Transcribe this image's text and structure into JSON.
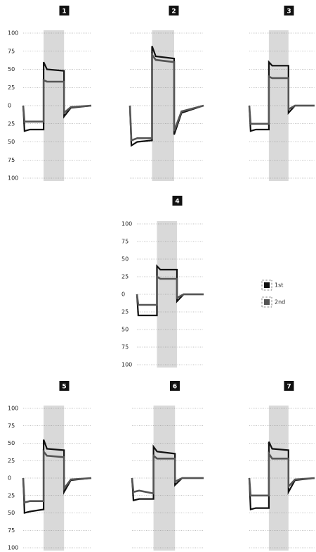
{
  "chart_data": [
    {
      "type": "line",
      "title": "1",
      "x": [
        0,
        0.2,
        1,
        3,
        3,
        3.5,
        6,
        6,
        7,
        10
      ],
      "xlim": [
        0,
        10
      ],
      "ylim": [
        -100,
        100
      ],
      "yticks": [
        100,
        75,
        50,
        25,
        0,
        {
          "value": -25,
          "label": "25"
        },
        {
          "value": -50,
          "label": "50"
        },
        {
          "value": -75,
          "label": "75"
        },
        {
          "value": -100,
          "label": "100"
        }
      ],
      "tick_labels": true,
      "grid": true,
      "span": [
        3,
        6
      ],
      "series": [
        {
          "color": "#111111",
          "values": [
            0,
            -35,
            -33,
            -33,
            60,
            50,
            48,
            -15,
            -3,
            0
          ]
        },
        {
          "color": "#555555",
          "values": [
            0,
            -22,
            -22,
            -22,
            35,
            33,
            33,
            -10,
            -2,
            0
          ]
        }
      ]
    },
    {
      "type": "line",
      "title": "2",
      "x": [
        0,
        0.2,
        1,
        3,
        3,
        3.5,
        6,
        6,
        7,
        10
      ],
      "xlim": [
        0,
        10
      ],
      "ylim": [
        -100,
        100
      ],
      "yticks": [
        100,
        75,
        50,
        25,
        0,
        -25,
        -50,
        -75,
        -100
      ],
      "tick_labels": false,
      "grid": true,
      "span": [
        3,
        6
      ],
      "series": [
        {
          "color": "#111111",
          "values": [
            0,
            -55,
            -50,
            -48,
            82,
            68,
            65,
            -40,
            -10,
            0
          ]
        },
        {
          "color": "#555555",
          "values": [
            0,
            -48,
            -45,
            -45,
            70,
            63,
            60,
            -35,
            -8,
            0
          ]
        }
      ]
    },
    {
      "type": "line",
      "title": "3",
      "x": [
        0,
        0.2,
        1,
        3,
        3,
        3.5,
        6,
        6,
        7,
        10
      ],
      "xlim": [
        0,
        10
      ],
      "ylim": [
        -100,
        100
      ],
      "yticks": [
        100,
        75,
        50,
        25,
        0,
        -25,
        -50,
        -75,
        -100
      ],
      "tick_labels": false,
      "grid": true,
      "span": [
        3,
        6
      ],
      "series": [
        {
          "color": "#111111",
          "values": [
            0,
            -35,
            -33,
            -33,
            60,
            55,
            55,
            -10,
            0,
            0
          ]
        },
        {
          "color": "#555555",
          "values": [
            0,
            -25,
            -25,
            -25,
            40,
            38,
            38,
            -5,
            0,
            0
          ]
        }
      ]
    },
    {
      "type": "line",
      "title": "4",
      "x": [
        0,
        0.2,
        1,
        3,
        3,
        3.5,
        6,
        6,
        7,
        10
      ],
      "xlim": [
        0,
        10
      ],
      "ylim": [
        -100,
        100
      ],
      "yticks": [
        100,
        75,
        50,
        25,
        0,
        {
          "value": -25,
          "label": "25"
        },
        {
          "value": -50,
          "label": "50"
        },
        {
          "value": -75,
          "label": "75"
        },
        {
          "value": -100,
          "label": "100"
        }
      ],
      "tick_labels": true,
      "grid": true,
      "span": [
        3,
        6
      ],
      "legend": "right",
      "series": [
        {
          "name": "1st",
          "color": "#111111",
          "values": [
            0,
            -30,
            -30,
            -30,
            40,
            35,
            35,
            -10,
            0,
            0
          ]
        },
        {
          "name": "2nd",
          "color": "#555555",
          "values": [
            0,
            -15,
            -15,
            -15,
            25,
            22,
            22,
            -5,
            0,
            0
          ]
        }
      ]
    },
    {
      "type": "line",
      "title": "5",
      "x": [
        0,
        0.2,
        1,
        3,
        3,
        3.5,
        6,
        6,
        7,
        10
      ],
      "xlim": [
        0,
        10
      ],
      "ylim": [
        -100,
        100
      ],
      "yticks": [
        100,
        75,
        50,
        25,
        0,
        {
          "value": -25,
          "label": "25"
        },
        {
          "value": -50,
          "label": "50"
        },
        {
          "value": -75,
          "label": "75"
        },
        {
          "value": -100,
          "label": "100"
        }
      ],
      "tick_labels": true,
      "grid": true,
      "span": [
        3,
        6
      ],
      "series": [
        {
          "color": "#111111",
          "values": [
            0,
            -50,
            -48,
            -45,
            55,
            42,
            40,
            -20,
            -3,
            0
          ]
        },
        {
          "color": "#555555",
          "values": [
            0,
            -35,
            -33,
            -33,
            38,
            32,
            30,
            -15,
            -2,
            0
          ]
        }
      ]
    },
    {
      "type": "line",
      "title": "6",
      "x": [
        0,
        0.2,
        1,
        3,
        3,
        3.5,
        6,
        6,
        7,
        10
      ],
      "xlim": [
        0,
        10
      ],
      "ylim": [
        -100,
        100
      ],
      "yticks": [
        100,
        75,
        50,
        25,
        0,
        -25,
        -50,
        -75,
        -100
      ],
      "tick_labels": false,
      "grid": true,
      "span": [
        3,
        6
      ],
      "series": [
        {
          "color": "#111111",
          "values": [
            0,
            -32,
            -30,
            -30,
            45,
            38,
            35,
            -10,
            0,
            0
          ]
        },
        {
          "color": "#555555",
          "values": [
            0,
            -20,
            -18,
            -22,
            32,
            28,
            28,
            -5,
            0,
            0
          ]
        }
      ]
    },
    {
      "type": "line",
      "title": "7",
      "x": [
        0,
        0.2,
        1,
        3,
        3,
        3.5,
        6,
        6,
        7,
        10
      ],
      "xlim": [
        0,
        10
      ],
      "ylim": [
        -100,
        100
      ],
      "yticks": [
        100,
        75,
        50,
        25,
        0,
        -25,
        -50,
        -75,
        -100
      ],
      "tick_labels": false,
      "grid": true,
      "span": [
        3,
        6
      ],
      "series": [
        {
          "color": "#111111",
          "values": [
            0,
            -45,
            -43,
            -43,
            52,
            42,
            40,
            -20,
            -3,
            0
          ]
        },
        {
          "color": "#555555",
          "values": [
            0,
            -25,
            -25,
            -25,
            35,
            28,
            28,
            -12,
            -2,
            0
          ]
        }
      ]
    }
  ]
}
